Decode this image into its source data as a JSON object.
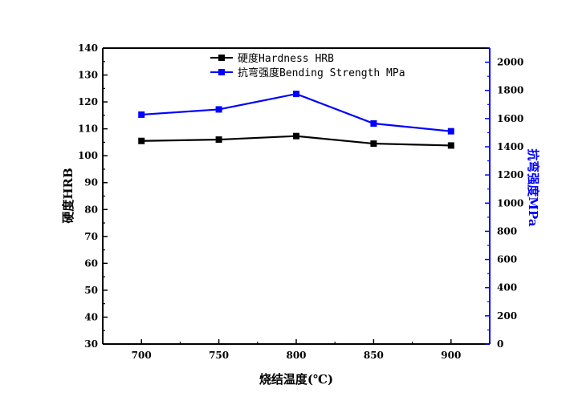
{
  "chart_data": {
    "type": "line",
    "title": "",
    "xlabel": "烧结温度(℃)",
    "ylabel": "硬度HRB",
    "y2label": "抗弯强度MPa",
    "x": [
      700,
      750,
      800,
      850,
      900
    ],
    "xlim": [
      675,
      925
    ],
    "ylim": [
      30,
      140
    ],
    "y2lim": [
      0,
      2100
    ],
    "x_ticks": [
      "700",
      "750",
      "800",
      "850",
      "900"
    ],
    "y_ticks": [
      "30",
      "40",
      "50",
      "60",
      "70",
      "80",
      "90",
      "100",
      "110",
      "120",
      "130",
      "140"
    ],
    "y2_ticks": [
      "0",
      "200",
      "400",
      "600",
      "800",
      "1000",
      "1200",
      "1400",
      "1600",
      "1800",
      "2000"
    ],
    "legend_position": "top-center",
    "grid": false,
    "series": [
      {
        "name": "硬度Hardness HRB",
        "axis": "left",
        "color": "#000000",
        "marker": "square",
        "values": [
          105.5,
          106.0,
          107.3,
          104.5,
          103.8
        ]
      },
      {
        "name": "抗弯强度Bending Strength MPa",
        "axis": "right",
        "color": "#0000ff",
        "marker": "square",
        "values": [
          1628,
          1665,
          1775,
          1565,
          1510
        ]
      }
    ]
  }
}
